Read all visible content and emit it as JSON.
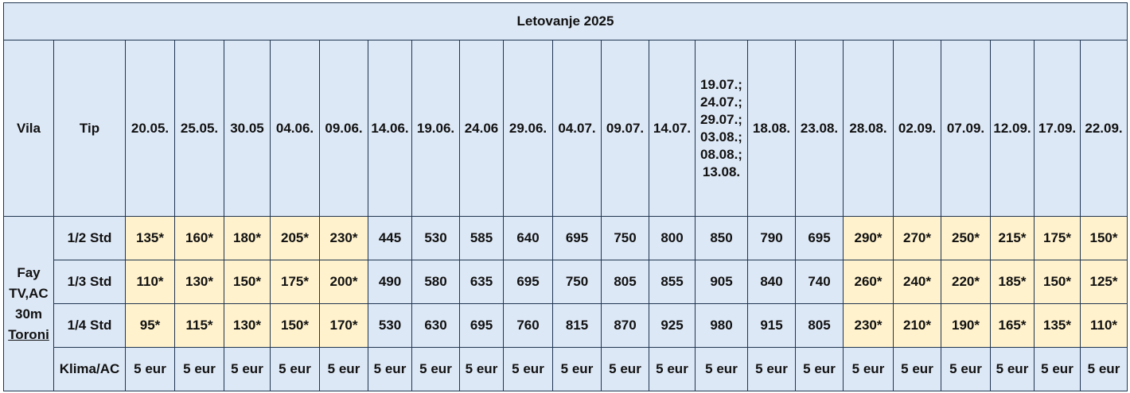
{
  "table": {
    "title": "Letovanje 2025",
    "header": {
      "vila": "Vila",
      "tip": "Tip",
      "dates": [
        "20.05.",
        "25.05.",
        "30.05",
        "04.06.",
        "09.06.",
        "14.06.",
        "19.06.",
        "24.06",
        "29.06.",
        "04.07.",
        "09.07.",
        "14.07.",
        [
          "19.07.;",
          "24.07.;",
          "29.07.;",
          "03.08.;",
          "08.08.;",
          "13.08."
        ],
        "18.08.",
        "23.08.",
        "28.08.",
        "02.09.",
        "07.09.",
        "12.09.",
        "17.09.",
        "22.09."
      ]
    },
    "vila": [
      "Fay",
      "TV,AC",
      "30m",
      "Toroni"
    ],
    "rows": [
      {
        "tip": "1/2 Std",
        "prices": [
          "135*",
          "160*",
          "180*",
          "205*",
          "230*",
          "445",
          "530",
          "585",
          "640",
          "695",
          "750",
          "800",
          "850",
          "790",
          "695",
          "290*",
          "270*",
          "250*",
          "215*",
          "175*",
          "150*"
        ]
      },
      {
        "tip": "1/3 Std",
        "prices": [
          "110*",
          "130*",
          "150*",
          "175*",
          "200*",
          "490",
          "580",
          "635",
          "695",
          "750",
          "805",
          "855",
          "905",
          "840",
          "740",
          "260*",
          "240*",
          "220*",
          "185*",
          "150*",
          "125*"
        ]
      },
      {
        "tip": "1/4 Std",
        "prices": [
          "95*",
          "115*",
          "130*",
          "150*",
          "170*",
          "530",
          "630",
          "695",
          "760",
          "815",
          "870",
          "925",
          "980",
          "915",
          "805",
          "230*",
          "210*",
          "190*",
          "165*",
          "135*",
          "110*"
        ]
      },
      {
        "tip": "Klima/AC",
        "prices": [
          "5 eur",
          "5 eur",
          "5 eur",
          "5 eur",
          "5 eur",
          "5 eur",
          "5 eur",
          "5 eur",
          "5 eur",
          "5 eur",
          "5 eur",
          "5 eur",
          "5 eur",
          "5 eur",
          "5 eur",
          "5 eur",
          "5 eur",
          "5 eur",
          "5 eur",
          "5 eur",
          "5 eur"
        ]
      }
    ]
  }
}
